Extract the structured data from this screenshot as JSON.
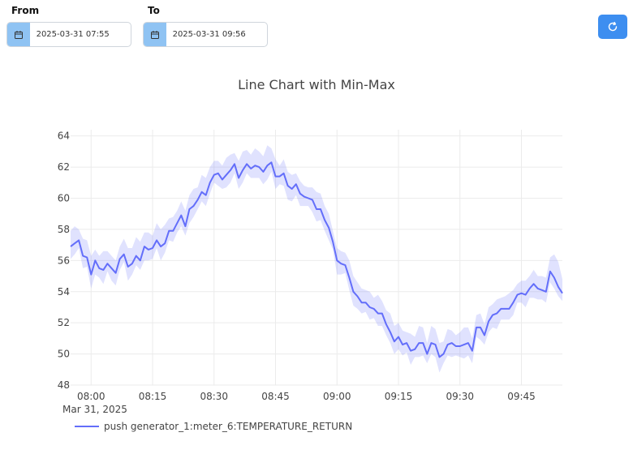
{
  "filters": {
    "from_label": "From",
    "from_value": "2025-03-31 07:55",
    "to_label": "To",
    "to_value": "2025-03-31 09:56"
  },
  "icons": {
    "calendar": "calendar-icon",
    "refresh": "refresh-icon"
  },
  "colors": {
    "line": "#636efa",
    "band": "rgba(99,110,250,0.2)",
    "button": "#3d8ef0",
    "calendar_bg": "#8fc3f3"
  },
  "chart_data": {
    "type": "line",
    "title": "Line Chart with Min-Max",
    "x_date_caption": "Mar 31, 2025",
    "x_start": "07:55",
    "x_end": "09:55",
    "x_step_minutes": 1,
    "x_ticks": [
      "08:00",
      "08:15",
      "08:30",
      "08:45",
      "09:00",
      "09:15",
      "09:30",
      "09:45"
    ],
    "y_ticks": [
      48,
      50,
      52,
      54,
      56,
      58,
      60,
      62,
      64
    ],
    "ylim": [
      48,
      64.4
    ],
    "grid": true,
    "legend_position": "bottom-left",
    "series": [
      {
        "name": "push generator_1:meter_6:TEMPERATURE_RETURN",
        "values": [
          56.9,
          57.1,
          57.3,
          56.3,
          56.2,
          55.1,
          56.0,
          55.5,
          55.4,
          55.8,
          55.5,
          55.2,
          56.1,
          56.4,
          55.6,
          55.8,
          56.3,
          56.0,
          56.9,
          56.7,
          56.8,
          57.3,
          56.9,
          57.1,
          57.9,
          57.9,
          58.4,
          58.9,
          58.2,
          59.3,
          59.5,
          59.9,
          60.4,
          60.2,
          61.0,
          61.5,
          61.6,
          61.2,
          61.5,
          61.8,
          62.2,
          61.3,
          61.8,
          62.2,
          61.9,
          62.1,
          62.0,
          61.7,
          62.1,
          62.3,
          61.4,
          61.4,
          61.6,
          60.8,
          60.6,
          60.9,
          60.3,
          60.1,
          60.0,
          59.9,
          59.3,
          59.3,
          58.6,
          58.1,
          57.2,
          56.0,
          55.8,
          55.7,
          54.9,
          54.0,
          53.7,
          53.3,
          53.3,
          53.0,
          52.9,
          52.6,
          52.6,
          51.9,
          51.4,
          50.8,
          51.1,
          50.6,
          50.7,
          50.2,
          50.3,
          50.7,
          50.7,
          50.0,
          50.7,
          50.6,
          49.8,
          50.0,
          50.6,
          50.7,
          50.5,
          50.5,
          50.6,
          50.7,
          50.2,
          51.7,
          51.7,
          51.2,
          52.1,
          52.5,
          52.6,
          52.9,
          52.9,
          52.9,
          53.3,
          53.8,
          53.9,
          53.8,
          54.2,
          54.5,
          54.2,
          54.1,
          54.0,
          55.3,
          54.9,
          54.3,
          53.9
        ],
        "lower": [
          56.1,
          56.4,
          56.8,
          55.5,
          55.6,
          54.2,
          55.1,
          54.9,
          54.5,
          55.3,
          54.7,
          54.4,
          55.4,
          55.9,
          54.7,
          55.1,
          55.7,
          55.4,
          56.0,
          56.0,
          56.1,
          56.8,
          56.0,
          56.5,
          57.3,
          57.2,
          57.8,
          58.2,
          57.6,
          58.4,
          58.8,
          59.3,
          59.8,
          59.5,
          60.3,
          61.0,
          60.8,
          60.6,
          60.7,
          61.0,
          61.6,
          60.6,
          61.0,
          61.6,
          61.3,
          61.3,
          61.3,
          60.9,
          61.2,
          61.7,
          60.6,
          60.9,
          60.8,
          59.9,
          59.8,
          60.2,
          59.5,
          59.5,
          59.5,
          59.1,
          58.5,
          58.6,
          57.9,
          57.3,
          56.7,
          55.1,
          55.1,
          55.2,
          54.1,
          53.1,
          52.9,
          52.6,
          52.7,
          52.2,
          52.3,
          51.8,
          51.8,
          51.2,
          50.7,
          50.0,
          50.3,
          49.9,
          50.1,
          49.3,
          49.8,
          49.8,
          49.9,
          49.4,
          50.0,
          49.8,
          48.8,
          49.4,
          49.9,
          49.8,
          49.9,
          49.8,
          49.7,
          49.9,
          49.4,
          51.1,
          50.9,
          50.6,
          51.4,
          51.7,
          51.6,
          52.2,
          52.2,
          52.2,
          52.5,
          53.3,
          53.3,
          53.0,
          53.6,
          53.6,
          53.5,
          53.5,
          53.3,
          54.6,
          54.2,
          53.7,
          53.4
        ],
        "upper": [
          57.9,
          58.2,
          58.0,
          57.4,
          57.3,
          56.3,
          56.7,
          56.3,
          56.6,
          56.6,
          56.3,
          56.0,
          56.9,
          57.4,
          56.8,
          56.8,
          57.5,
          57.2,
          57.8,
          57.8,
          57.6,
          58.4,
          58.0,
          58.3,
          58.7,
          58.8,
          59.2,
          59.8,
          59.2,
          60.2,
          60.6,
          60.7,
          61.5,
          61.3,
          62.0,
          62.4,
          62.4,
          62.1,
          62.6,
          62.8,
          62.9,
          62.4,
          63.0,
          63.1,
          62.8,
          63.2,
          63.0,
          62.7,
          63.4,
          63.2,
          62.5,
          62.1,
          62.5,
          61.7,
          61.5,
          61.6,
          61.1,
          60.8,
          60.7,
          60.7,
          60.4,
          60.3,
          59.5,
          59.0,
          57.9,
          56.8,
          56.6,
          56.5,
          56.0,
          55.0,
          54.6,
          54.2,
          54.1,
          54.0,
          53.6,
          53.8,
          53.4,
          52.8,
          52.6,
          51.8,
          52.0,
          51.5,
          51.4,
          51.3,
          51.1,
          51.8,
          51.7,
          50.7,
          51.8,
          51.6,
          50.7,
          50.8,
          51.6,
          51.5,
          51.2,
          51.4,
          51.7,
          51.7,
          51.0,
          52.5,
          52.6,
          51.9,
          53.0,
          53.2,
          53.5,
          53.6,
          53.7,
          53.9,
          54.1,
          54.5,
          54.7,
          54.7,
          55.0,
          55.4,
          55.0,
          55.0,
          54.9,
          56.2,
          56.4,
          55.9,
          54.8
        ]
      }
    ]
  }
}
